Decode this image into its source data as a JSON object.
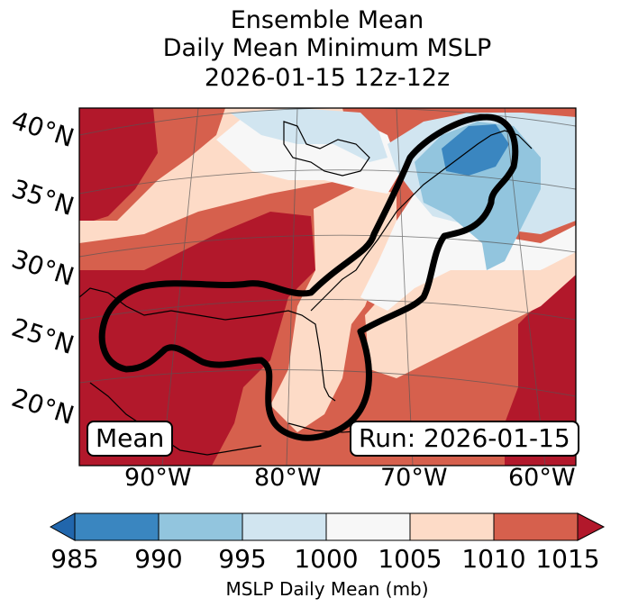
{
  "title": {
    "line1": "Ensemble Mean",
    "line2": "Daily Mean Minimum MSLP",
    "line3": "2026-01-15 12z-12z"
  },
  "map": {
    "lat_labels": [
      "40°N",
      "35°N",
      "30°N",
      "25°N",
      "20°N"
    ],
    "lon_labels": [
      "90°W",
      "80°W",
      "70°W",
      "60°W"
    ],
    "left_box": "Mean",
    "right_box": "Run: 2026-01-15"
  },
  "colorbar": {
    "ticks": [
      "985",
      "990",
      "995",
      "1000",
      "1005",
      "1010",
      "1015"
    ],
    "label": "MSLP Daily Mean (mb)",
    "colors": [
      "#2166ac",
      "#3a86c0",
      "#92c5de",
      "#d1e5f0",
      "#f7f7f7",
      "#fddbc7",
      "#d6604d",
      "#b2182b"
    ]
  }
}
